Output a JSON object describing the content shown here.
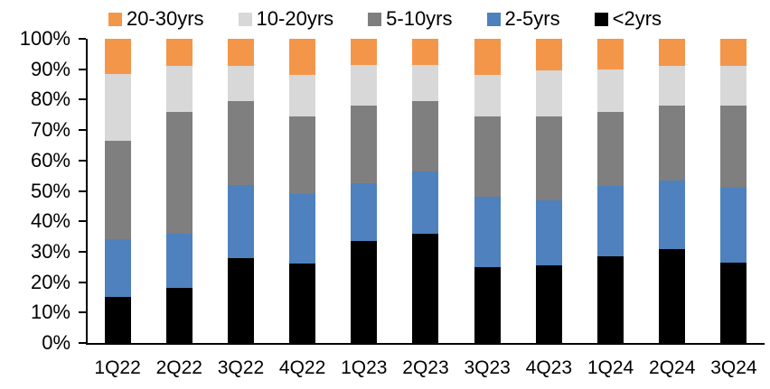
{
  "chart_data": {
    "type": "bar",
    "stacked": true,
    "title": "",
    "categories": [
      "1Q22",
      "2Q22",
      "3Q22",
      "4Q22",
      "1Q23",
      "2Q23",
      "3Q23",
      "4Q23",
      "1Q24",
      "2Q24",
      "3Q24"
    ],
    "series": [
      {
        "name": "20-30yrs",
        "color": "#F4964A",
        "values": [
          11.5,
          9,
          9,
          12,
          8.5,
          8.5,
          12,
          10.5,
          10,
          9,
          9
        ]
      },
      {
        "name": "10-20yrs",
        "color": "#D8D8D8",
        "values": [
          22,
          15,
          11.5,
          13.5,
          13.5,
          12,
          13.5,
          15,
          14,
          13,
          13
        ]
      },
      {
        "name": "5-10yrs",
        "color": "#7F7F7F",
        "values": [
          32.5,
          40,
          27.5,
          25.5,
          25.5,
          23,
          26.5,
          27.5,
          24.5,
          24.5,
          27
        ]
      },
      {
        "name": "2-5yrs",
        "color": "#4E81BD",
        "values": [
          19,
          18,
          24,
          23,
          19,
          20.5,
          23,
          21.5,
          23,
          22.5,
          24.5
        ]
      },
      {
        "name": "<2yrs",
        "color": "#000000",
        "values": [
          15,
          18,
          28,
          26,
          33.5,
          36,
          25,
          25.5,
          28.5,
          31,
          26.5
        ]
      }
    ],
    "stack_order_top_to_bottom": [
      "20-30yrs",
      "10-20yrs",
      "5-10yrs",
      "2-5yrs",
      "<2yrs"
    ],
    "xlabel": "",
    "ylabel": "",
    "ylim": [
      0,
      100
    ],
    "yticks": [
      0,
      10,
      20,
      30,
      40,
      50,
      60,
      70,
      80,
      90,
      100
    ],
    "ytick_labels": [
      "0%",
      "10%",
      "20%",
      "30%",
      "40%",
      "50%",
      "60%",
      "70%",
      "80%",
      "90%",
      "100%"
    ],
    "grid": false,
    "legend_position": "top",
    "axis_color": "#000000",
    "background": "#FFFFFF"
  }
}
